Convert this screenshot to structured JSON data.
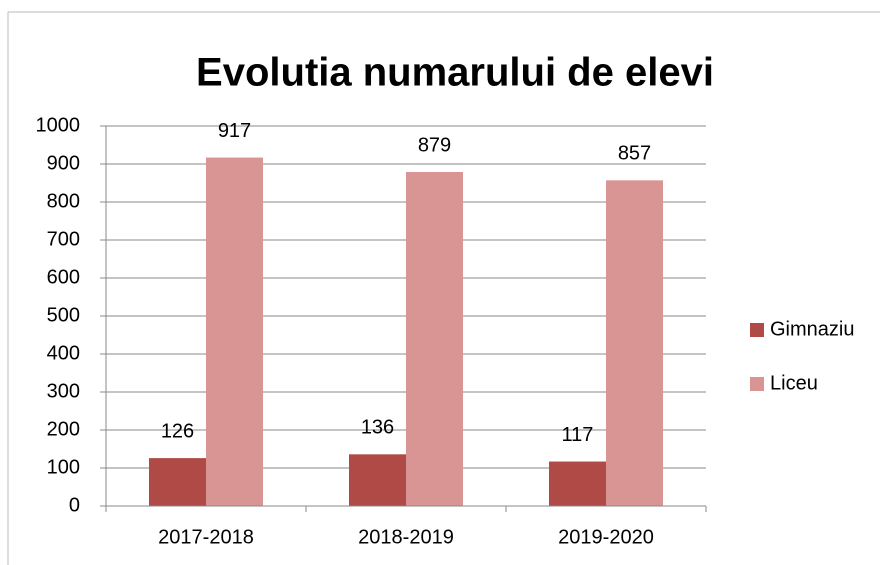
{
  "chart_data": {
    "type": "bar",
    "title": "Evolutia numarului de elevi",
    "categories": [
      "2017-2018",
      "2018-2019",
      "2019-2020"
    ],
    "series": [
      {
        "name": "Gimnaziu",
        "color": "#b04a47",
        "values": [
          126,
          136,
          117
        ]
      },
      {
        "name": "Liceu",
        "color": "#d99594",
        "values": [
          917,
          879,
          857
        ]
      }
    ],
    "ylim": [
      0,
      1000
    ],
    "yticks": [
      0,
      100,
      200,
      300,
      400,
      500,
      600,
      700,
      800,
      900,
      1000
    ],
    "grid": true,
    "legend": "right",
    "data_labels": true
  }
}
